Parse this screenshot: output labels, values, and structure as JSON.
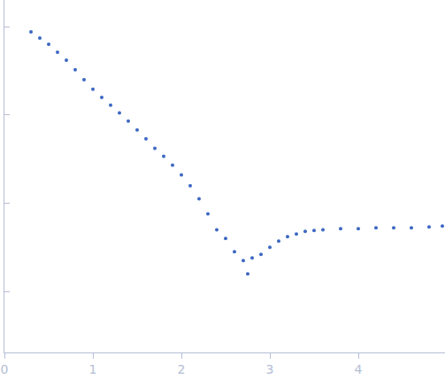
{
  "chart_data": {
    "type": "scatter",
    "marker": "circle",
    "color": "#3d68c2",
    "log": "y",
    "grid": false,
    "tick_labels": "x",
    "x": [
      0.3,
      0.4,
      0.5,
      0.6,
      0.7,
      0.8,
      0.9,
      1.0,
      1.1,
      1.2,
      1.3,
      1.4,
      1.5,
      1.6,
      1.7,
      1.8,
      1.9,
      2.0,
      2.1,
      2.2,
      2.3,
      2.4,
      2.5,
      2.6,
      2.7,
      2.75,
      2.8,
      2.9,
      3.0,
      3.1,
      3.2,
      3.3,
      3.4,
      3.5,
      3.6,
      3.8,
      4.0,
      4.2,
      4.4,
      4.6,
      4.8,
      4.95
    ],
    "values": [
      0.871,
      0.741,
      0.631,
      0.513,
      0.417,
      0.324,
      0.251,
      0.195,
      0.158,
      0.129,
      0.105,
      0.0851,
      0.0676,
      0.0537,
      0.0417,
      0.0339,
      0.0269,
      0.0209,
      0.0158,
      0.0112,
      0.00759,
      0.00501,
      0.00398,
      0.00282,
      0.00224,
      0.00158,
      0.0024,
      0.00263,
      0.00316,
      0.00372,
      0.00417,
      0.00447,
      0.00479,
      0.0049,
      0.00501,
      0.00513,
      0.00513,
      0.00525,
      0.00525,
      0.00525,
      0.00537,
      0.0055
    ],
    "xlim": [
      0,
      4.98
    ],
    "ylim": [
      0.000204,
      2.0
    ],
    "xticks": [
      0,
      1,
      2,
      3,
      4
    ],
    "yticks": [
      0.001,
      0.01,
      0.1,
      1
    ]
  }
}
